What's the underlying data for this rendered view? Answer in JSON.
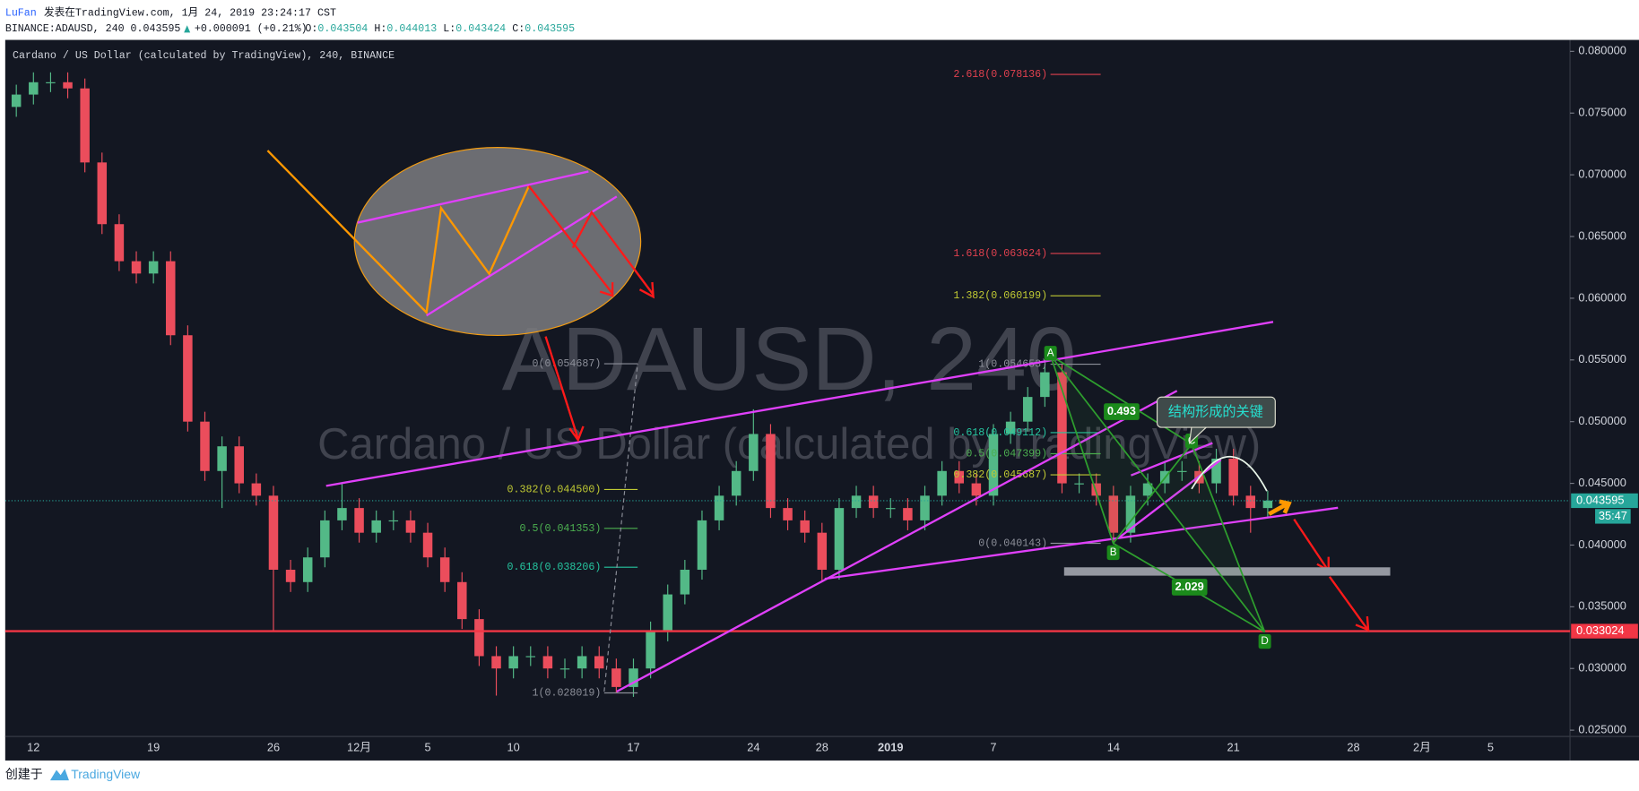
{
  "header": {
    "author": "LuFan",
    "published": "发表在TradingView.com, 1月 24, 2019 23:24:17 CST",
    "symbol": "BINANCE:ADAUSD, 240 0.043595",
    "change": "+0.000091 (+0.21%)",
    "ohlc": [
      {
        "key": "O:",
        "value": "0.043504"
      },
      {
        "key": "H:",
        "value": "0.044013"
      },
      {
        "key": "L:",
        "value": "0.043424"
      },
      {
        "key": "C:",
        "value": "0.043595"
      }
    ]
  },
  "chart_data": {
    "type": "candlestick",
    "title": "Cardano / US Dollar (calculated by TradingView), 240, BINANCE",
    "watermark": [
      "ADAUSD, 240",
      "Cardano / US Dollar (calculated by TradingView)"
    ],
    "up_color": "#53b987",
    "down_color": "#eb4d5c",
    "categories": [
      null,
      "12",
      null,
      null,
      null,
      null,
      null,
      null,
      "19",
      null,
      null,
      null,
      null,
      null,
      null,
      "26",
      null,
      null,
      null,
      null,
      "12月",
      null,
      null,
      null,
      "5",
      null,
      null,
      null,
      null,
      "10",
      null,
      null,
      null,
      null,
      null,
      null,
      "17",
      null,
      null,
      null,
      null,
      null,
      null,
      "24",
      null,
      null,
      null,
      "28",
      null,
      null,
      null,
      "2019",
      null,
      null,
      null,
      null,
      null,
      "7",
      null,
      null,
      null,
      null,
      null,
      null,
      "14",
      null,
      null,
      null,
      null,
      null,
      null,
      "21",
      null,
      null,
      null,
      null,
      null,
      null,
      "28",
      null,
      null,
      null,
      "2月",
      null,
      null,
      null,
      "5",
      null,
      null,
      null
    ],
    "open": [
      0.0755,
      0.0765,
      0.0775,
      0.0775,
      0.077,
      0.071,
      0.066,
      0.063,
      0.062,
      0.063,
      0.057,
      0.05,
      0.046,
      0.048,
      0.045,
      0.044,
      0.038,
      0.037,
      0.039,
      0.042,
      0.043,
      0.041,
      0.042,
      0.042,
      0.041,
      0.039,
      0.037,
      0.034,
      0.031,
      0.03,
      0.031,
      0.031,
      0.03,
      0.03,
      0.031,
      0.03,
      0.0285,
      0.03,
      0.033,
      0.036,
      0.038,
      0.042,
      0.044,
      0.046,
      0.049,
      0.043,
      0.042,
      0.041,
      0.038,
      0.043,
      0.044,
      0.043,
      0.043,
      0.042,
      0.044,
      0.046,
      0.045,
      0.044,
      0.049,
      0.05,
      0.052,
      0.054,
      0.045,
      0.045,
      0.044,
      0.041,
      0.044,
      0.045,
      0.046,
      0.046,
      0.045,
      0.047,
      0.044,
      0.043,
      null,
      null,
      null,
      null,
      null,
      null,
      null,
      null,
      null,
      null,
      null,
      null,
      null,
      null,
      null,
      null
    ],
    "high": [
      0.0773,
      0.0783,
      0.0783,
      0.0783,
      0.0778,
      0.0718,
      0.0668,
      0.0638,
      0.0638,
      0.0638,
      0.0578,
      0.0508,
      0.0488,
      0.0488,
      0.0458,
      0.0448,
      0.0388,
      0.0398,
      0.0428,
      0.045,
      0.0438,
      0.0428,
      0.0428,
      0.0428,
      0.0418,
      0.0398,
      0.0378,
      0.0348,
      0.0318,
      0.0318,
      0.0318,
      0.0318,
      0.0308,
      0.0318,
      0.0318,
      0.0308,
      0.0308,
      0.0338,
      0.0368,
      0.0388,
      0.0428,
      0.0448,
      0.0468,
      0.051,
      0.0498,
      0.0438,
      0.0428,
      0.0418,
      0.0438,
      0.0448,
      0.0448,
      0.0438,
      0.0438,
      0.0448,
      0.0468,
      0.0468,
      0.0458,
      0.0498,
      0.0508,
      0.0528,
      0.0547,
      0.0546,
      0.0458,
      0.0458,
      0.0448,
      0.0448,
      0.0458,
      0.0468,
      0.0468,
      0.0468,
      0.0478,
      0.0478,
      0.0448,
      0.0444,
      null,
      null,
      null,
      null,
      null,
      null,
      null,
      null,
      null,
      null,
      null,
      null,
      null,
      null,
      null,
      null
    ],
    "low": [
      0.0747,
      0.0757,
      0.0767,
      0.0762,
      0.0702,
      0.0652,
      0.0622,
      0.0612,
      0.0612,
      0.0562,
      0.0492,
      0.0452,
      0.043,
      0.0442,
      0.0432,
      0.033,
      0.0362,
      0.0362,
      0.0382,
      0.0412,
      0.0402,
      0.0402,
      0.0412,
      0.0402,
      0.0382,
      0.0362,
      0.0332,
      0.0302,
      0.0278,
      0.0292,
      0.0302,
      0.0292,
      0.0292,
      0.0292,
      0.0292,
      0.028,
      0.0277,
      0.0292,
      0.0322,
      0.0352,
      0.0372,
      0.0412,
      0.0432,
      0.0452,
      0.0422,
      0.0412,
      0.0402,
      0.037,
      0.0372,
      0.0422,
      0.0422,
      0.0422,
      0.0412,
      0.0412,
      0.0432,
      0.0442,
      0.0432,
      0.0432,
      0.0482,
      0.0492,
      0.0512,
      0.0442,
      0.0442,
      0.0432,
      0.0401,
      0.0402,
      0.0432,
      0.0442,
      0.0452,
      0.0442,
      0.0442,
      0.0432,
      0.041,
      0.0422,
      null,
      null,
      null,
      null,
      null,
      null,
      null,
      null,
      null,
      null,
      null,
      null,
      null,
      null,
      null,
      null
    ],
    "close": [
      0.0765,
      0.0775,
      0.0775,
      0.077,
      0.071,
      0.066,
      0.063,
      0.062,
      0.063,
      0.057,
      0.05,
      0.046,
      0.048,
      0.045,
      0.044,
      0.038,
      0.037,
      0.039,
      0.042,
      0.043,
      0.041,
      0.042,
      0.042,
      0.041,
      0.039,
      0.037,
      0.034,
      0.031,
      0.03,
      0.031,
      0.031,
      0.03,
      0.03,
      0.031,
      0.03,
      0.0285,
      0.03,
      0.033,
      0.036,
      0.038,
      0.042,
      0.044,
      0.046,
      0.049,
      0.043,
      0.042,
      0.041,
      0.038,
      0.043,
      0.044,
      0.043,
      0.043,
      0.042,
      0.044,
      0.046,
      0.045,
      0.044,
      0.049,
      0.05,
      0.052,
      0.054,
      0.045,
      0.045,
      0.044,
      0.041,
      0.044,
      0.045,
      0.046,
      0.046,
      0.045,
      0.047,
      0.044,
      0.043,
      0.0436,
      null,
      null,
      null,
      null,
      null,
      null,
      null,
      null,
      null,
      null,
      null,
      null,
      null,
      null,
      null,
      null
    ],
    "ylim": [
      0.02449,
      0.08093
    ],
    "yticks": [
      {
        "value": 0.025,
        "label": "0.025000"
      },
      {
        "value": 0.03,
        "label": "0.030000"
      },
      {
        "value": 0.035,
        "label": "0.035000"
      },
      {
        "value": 0.04,
        "label": "0.040000"
      },
      {
        "value": 0.045,
        "label": "0.045000"
      },
      {
        "value": 0.05,
        "label": "0.050000"
      },
      {
        "value": 0.055,
        "label": "0.055000"
      },
      {
        "value": 0.06,
        "label": "0.060000"
      },
      {
        "value": 0.065,
        "label": "0.065000"
      },
      {
        "value": 0.07,
        "label": "0.070000"
      },
      {
        "value": 0.075,
        "label": "0.075000"
      },
      {
        "value": 0.08,
        "label": "0.080000"
      }
    ],
    "last_price": {
      "value": 0.043595,
      "label": "0.043595",
      "timer": "35:47",
      "color": "#26a69a"
    },
    "horizontal_line": {
      "value": 0.033024,
      "label": "0.033024",
      "color": "#f23645"
    },
    "fib_right": [
      {
        "label": "2.618(0.078136)",
        "value": 0.078136,
        "color": "#e0414f"
      },
      {
        "label": "1.618(0.063624)",
        "value": 0.063624,
        "color": "#e0414f"
      },
      {
        "label": "1.382(0.060199)",
        "value": 0.060199,
        "color": "#c0ca33"
      },
      {
        "label": "1(0.054653)",
        "value": 0.054653,
        "color": "#8c8f99"
      },
      {
        "label": "0.618(0.049112)",
        "value": 0.049112,
        "color": "#26c6a0"
      },
      {
        "label": "0.5(0.047399)",
        "value": 0.047399,
        "color": "#4caf50"
      },
      {
        "label": "0.382(0.045687)",
        "value": 0.045687,
        "color": "#c0ca33"
      },
      {
        "label": "0(0.040143)",
        "value": 0.040143,
        "color": "#8c8f99"
      }
    ],
    "fib_left": [
      {
        "label": "0(0.054687)",
        "value": 0.054687,
        "color": "#8c8f99"
      },
      {
        "label": "0.382(0.044500)",
        "value": 0.0445,
        "color": "#c0ca33"
      },
      {
        "label": "0.5(0.041353)",
        "value": 0.041353,
        "color": "#4caf50"
      },
      {
        "label": "0.618(0.038206)",
        "value": 0.038206,
        "color": "#26c6a0"
      },
      {
        "label": "1(0.028019)",
        "value": 0.028019,
        "color": "#8c8f99"
      }
    ],
    "pattern": {
      "points": [
        "A",
        "B",
        "C",
        "D"
      ],
      "ratios": [
        "0.493",
        "2.029"
      ],
      "note": "结构形成的关键"
    }
  },
  "footer": {
    "made_with": "创建于",
    "brand": "TradingView"
  }
}
